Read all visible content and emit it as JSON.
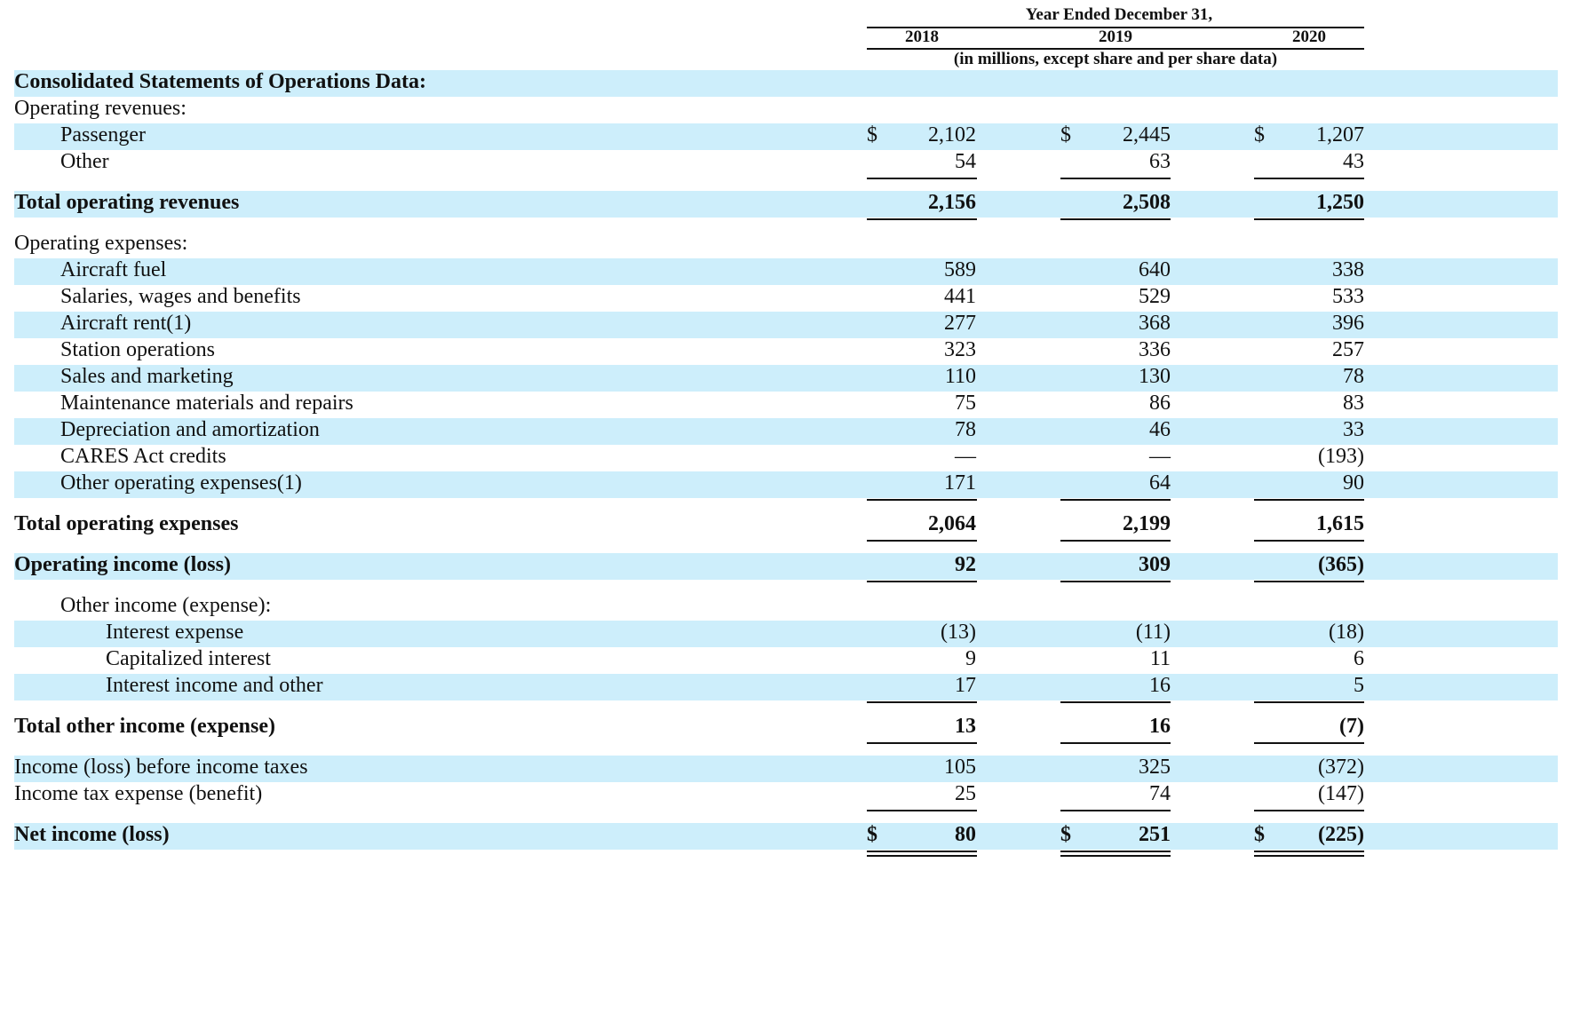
{
  "header": {
    "period_title": "Year Ended December 31,",
    "years": [
      "2018",
      "2019",
      "2020"
    ],
    "units": "(in millions, except share and per share data)"
  },
  "currency_symbol": "$",
  "rows": [
    {
      "label": "Consolidated Statements of Operations Data:",
      "style": "section",
      "indent": 0,
      "shade": true,
      "values": []
    },
    {
      "label": "Operating revenues:",
      "style": "normal",
      "indent": 0,
      "shade": false,
      "values": []
    },
    {
      "label": "Passenger",
      "style": "normal",
      "indent": 1,
      "shade": true,
      "dollar": true,
      "values": [
        "2,102",
        "2,445",
        "1,207"
      ]
    },
    {
      "label": "Other",
      "style": "normal",
      "indent": 1,
      "shade": false,
      "values": [
        "54",
        "63",
        "43"
      ],
      "rule_after": "single"
    },
    {
      "label": "Total operating revenues",
      "style": "bold",
      "indent": 0,
      "shade": true,
      "values": [
        "2,156",
        "2,508",
        "1,250"
      ],
      "rule_after": "single",
      "gap_before": true
    },
    {
      "label": "Operating expenses:",
      "style": "normal",
      "indent": 0,
      "shade": false,
      "values": [],
      "gap_before": true
    },
    {
      "label": "Aircraft fuel",
      "style": "normal",
      "indent": 1,
      "shade": true,
      "values": [
        "589",
        "640",
        "338"
      ]
    },
    {
      "label": "Salaries, wages and benefits",
      "style": "normal",
      "indent": 1,
      "shade": false,
      "values": [
        "441",
        "529",
        "533"
      ]
    },
    {
      "label": "Aircraft rent(1)",
      "style": "normal",
      "indent": 1,
      "shade": true,
      "values": [
        "277",
        "368",
        "396"
      ]
    },
    {
      "label": "Station operations",
      "style": "normal",
      "indent": 1,
      "shade": false,
      "values": [
        "323",
        "336",
        "257"
      ]
    },
    {
      "label": "Sales and marketing",
      "style": "normal",
      "indent": 1,
      "shade": true,
      "values": [
        "110",
        "130",
        "78"
      ]
    },
    {
      "label": "Maintenance materials and repairs",
      "style": "normal",
      "indent": 1,
      "shade": false,
      "values": [
        "75",
        "86",
        "83"
      ]
    },
    {
      "label": "Depreciation and amortization",
      "style": "normal",
      "indent": 1,
      "shade": true,
      "values": [
        "78",
        "46",
        "33"
      ]
    },
    {
      "label": "CARES Act credits",
      "style": "normal",
      "indent": 1,
      "shade": false,
      "values": [
        "—",
        "—",
        "(193)"
      ]
    },
    {
      "label": "Other operating expenses(1)",
      "style": "normal",
      "indent": 1,
      "shade": true,
      "values": [
        "171",
        "64",
        "90"
      ],
      "rule_after": "single"
    },
    {
      "label": "Total operating expenses",
      "style": "bold",
      "indent": 0,
      "shade": false,
      "values": [
        "2,064",
        "2,199",
        "1,615"
      ],
      "rule_after": "single",
      "gap_before": true
    },
    {
      "label": "Operating income (loss)",
      "style": "bold",
      "indent": 0,
      "shade": true,
      "values": [
        "92",
        "309",
        "(365)"
      ],
      "rule_after": "single",
      "gap_before": true
    },
    {
      "label": "Other income (expense):",
      "style": "normal",
      "indent": 1,
      "shade": false,
      "values": [],
      "gap_before": true
    },
    {
      "label": "Interest expense",
      "style": "normal",
      "indent": 2,
      "shade": true,
      "values": [
        "(13)",
        "(11)",
        "(18)"
      ]
    },
    {
      "label": "Capitalized interest",
      "style": "normal",
      "indent": 2,
      "shade": false,
      "values": [
        "9",
        "11",
        "6"
      ]
    },
    {
      "label": "Interest income and other",
      "style": "normal",
      "indent": 2,
      "shade": true,
      "values": [
        "17",
        "16",
        "5"
      ],
      "rule_after": "single"
    },
    {
      "label": "Total other income (expense)",
      "style": "bold",
      "indent": 0,
      "shade": false,
      "values": [
        "13",
        "16",
        "(7)"
      ],
      "rule_after": "single",
      "gap_before": true
    },
    {
      "label": "Income (loss) before income taxes",
      "style": "normal",
      "indent": 0,
      "shade": true,
      "values": [
        "105",
        "325",
        "(372)"
      ],
      "gap_before": true
    },
    {
      "label": "Income tax expense (benefit)",
      "style": "normal",
      "indent": 0,
      "shade": false,
      "values": [
        "25",
        "74",
        "(147)"
      ],
      "rule_after": "single"
    },
    {
      "label": "Net income (loss)",
      "style": "bold",
      "indent": 0,
      "shade": true,
      "dollar": true,
      "values": [
        "80",
        "251",
        "(225)"
      ],
      "rule_after": "double",
      "gap_before": true
    }
  ]
}
